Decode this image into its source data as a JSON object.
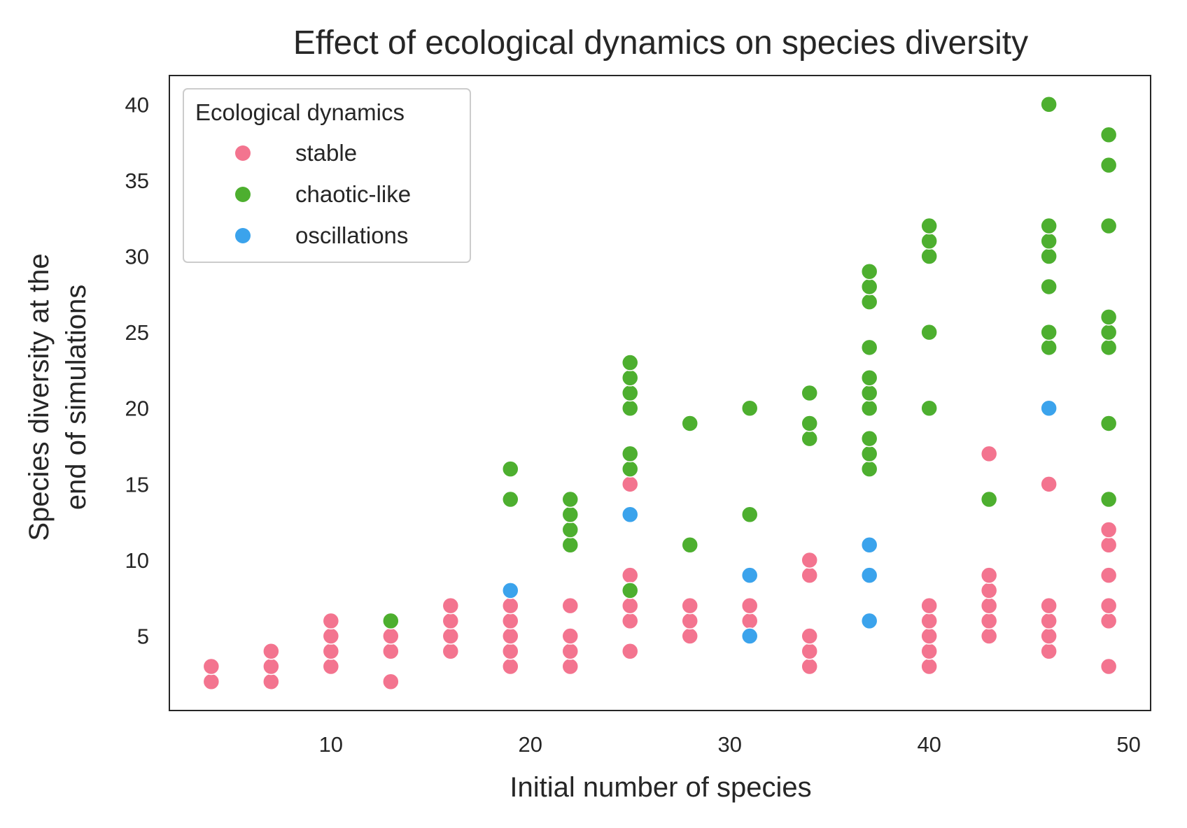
{
  "chart_data": {
    "type": "scatter",
    "title": "Effect of ecological dynamics on species diversity",
    "xlabel": "Initial number of species",
    "ylabel_line1": "Species diversity at the",
    "ylabel_line2": "end of simulations",
    "xlim": [
      1.9,
      51.1
    ],
    "ylim": [
      0.1,
      41.9
    ],
    "x_ticks": [
      10,
      20,
      30,
      40,
      50
    ],
    "y_ticks": [
      5,
      10,
      15,
      20,
      25,
      30,
      35,
      40
    ],
    "grid": false,
    "legend": {
      "title": "Ecological dynamics",
      "position": "top-left"
    },
    "series": [
      {
        "name": "stable",
        "color": "#f3748f",
        "points": [
          [
            4,
            2
          ],
          [
            4,
            3
          ],
          [
            7,
            2
          ],
          [
            7,
            3
          ],
          [
            7,
            4
          ],
          [
            10,
            3
          ],
          [
            10,
            4
          ],
          [
            10,
            5
          ],
          [
            10,
            6
          ],
          [
            13,
            2
          ],
          [
            13,
            4
          ],
          [
            13,
            5
          ],
          [
            16,
            4
          ],
          [
            16,
            5
          ],
          [
            16,
            6
          ],
          [
            16,
            7
          ],
          [
            19,
            3
          ],
          [
            19,
            4
          ],
          [
            19,
            5
          ],
          [
            19,
            6
          ],
          [
            19,
            7
          ],
          [
            22,
            3
          ],
          [
            22,
            4
          ],
          [
            22,
            5
          ],
          [
            22,
            7
          ],
          [
            25,
            4
          ],
          [
            25,
            6
          ],
          [
            25,
            7
          ],
          [
            25,
            9
          ],
          [
            25,
            15
          ],
          [
            28,
            5
          ],
          [
            28,
            6
          ],
          [
            28,
            7
          ],
          [
            31,
            6
          ],
          [
            31,
            7
          ],
          [
            34,
            3
          ],
          [
            34,
            4
          ],
          [
            34,
            5
          ],
          [
            34,
            9
          ],
          [
            34,
            10
          ],
          [
            40,
            3
          ],
          [
            40,
            4
          ],
          [
            40,
            5
          ],
          [
            40,
            6
          ],
          [
            40,
            7
          ],
          [
            43,
            5
          ],
          [
            43,
            6
          ],
          [
            43,
            7
          ],
          [
            43,
            8
          ],
          [
            43,
            9
          ],
          [
            43,
            17
          ],
          [
            46,
            4
          ],
          [
            46,
            5
          ],
          [
            46,
            6
          ],
          [
            46,
            7
          ],
          [
            46,
            15
          ],
          [
            49,
            3
          ],
          [
            49,
            6
          ],
          [
            49,
            7
          ],
          [
            49,
            9
          ],
          [
            49,
            11
          ],
          [
            49,
            12
          ]
        ]
      },
      {
        "name": "chaotic-like",
        "color": "#4daf2f",
        "points": [
          [
            13,
            6
          ],
          [
            19,
            14
          ],
          [
            19,
            16
          ],
          [
            22,
            11
          ],
          [
            22,
            12
          ],
          [
            22,
            13
          ],
          [
            22,
            14
          ],
          [
            25,
            8
          ],
          [
            25,
            16
          ],
          [
            25,
            17
          ],
          [
            25,
            20
          ],
          [
            25,
            21
          ],
          [
            25,
            22
          ],
          [
            25,
            23
          ],
          [
            28,
            11
          ],
          [
            28,
            19
          ],
          [
            31,
            13
          ],
          [
            31,
            20
          ],
          [
            34,
            18
          ],
          [
            34,
            19
          ],
          [
            34,
            21
          ],
          [
            37,
            16
          ],
          [
            37,
            17
          ],
          [
            37,
            18
          ],
          [
            37,
            20
          ],
          [
            37,
            21
          ],
          [
            37,
            22
          ],
          [
            37,
            24
          ],
          [
            37,
            27
          ],
          [
            37,
            28
          ],
          [
            37,
            29
          ],
          [
            40,
            20
          ],
          [
            40,
            25
          ],
          [
            40,
            30
          ],
          [
            40,
            31
          ],
          [
            40,
            32
          ],
          [
            43,
            14
          ],
          [
            46,
            24
          ],
          [
            46,
            25
          ],
          [
            46,
            28
          ],
          [
            46,
            30
          ],
          [
            46,
            31
          ],
          [
            46,
            32
          ],
          [
            46,
            40
          ],
          [
            49,
            14
          ],
          [
            49,
            19
          ],
          [
            49,
            24
          ],
          [
            49,
            25
          ],
          [
            49,
            26
          ],
          [
            49,
            32
          ],
          [
            49,
            36
          ],
          [
            49,
            38
          ]
        ]
      },
      {
        "name": "oscillations",
        "color": "#3ba3ec",
        "points": [
          [
            19,
            8
          ],
          [
            25,
            13
          ],
          [
            31,
            5
          ],
          [
            31,
            9
          ],
          [
            37,
            6
          ],
          [
            37,
            9
          ],
          [
            37,
            11
          ],
          [
            46,
            20
          ]
        ]
      }
    ]
  }
}
